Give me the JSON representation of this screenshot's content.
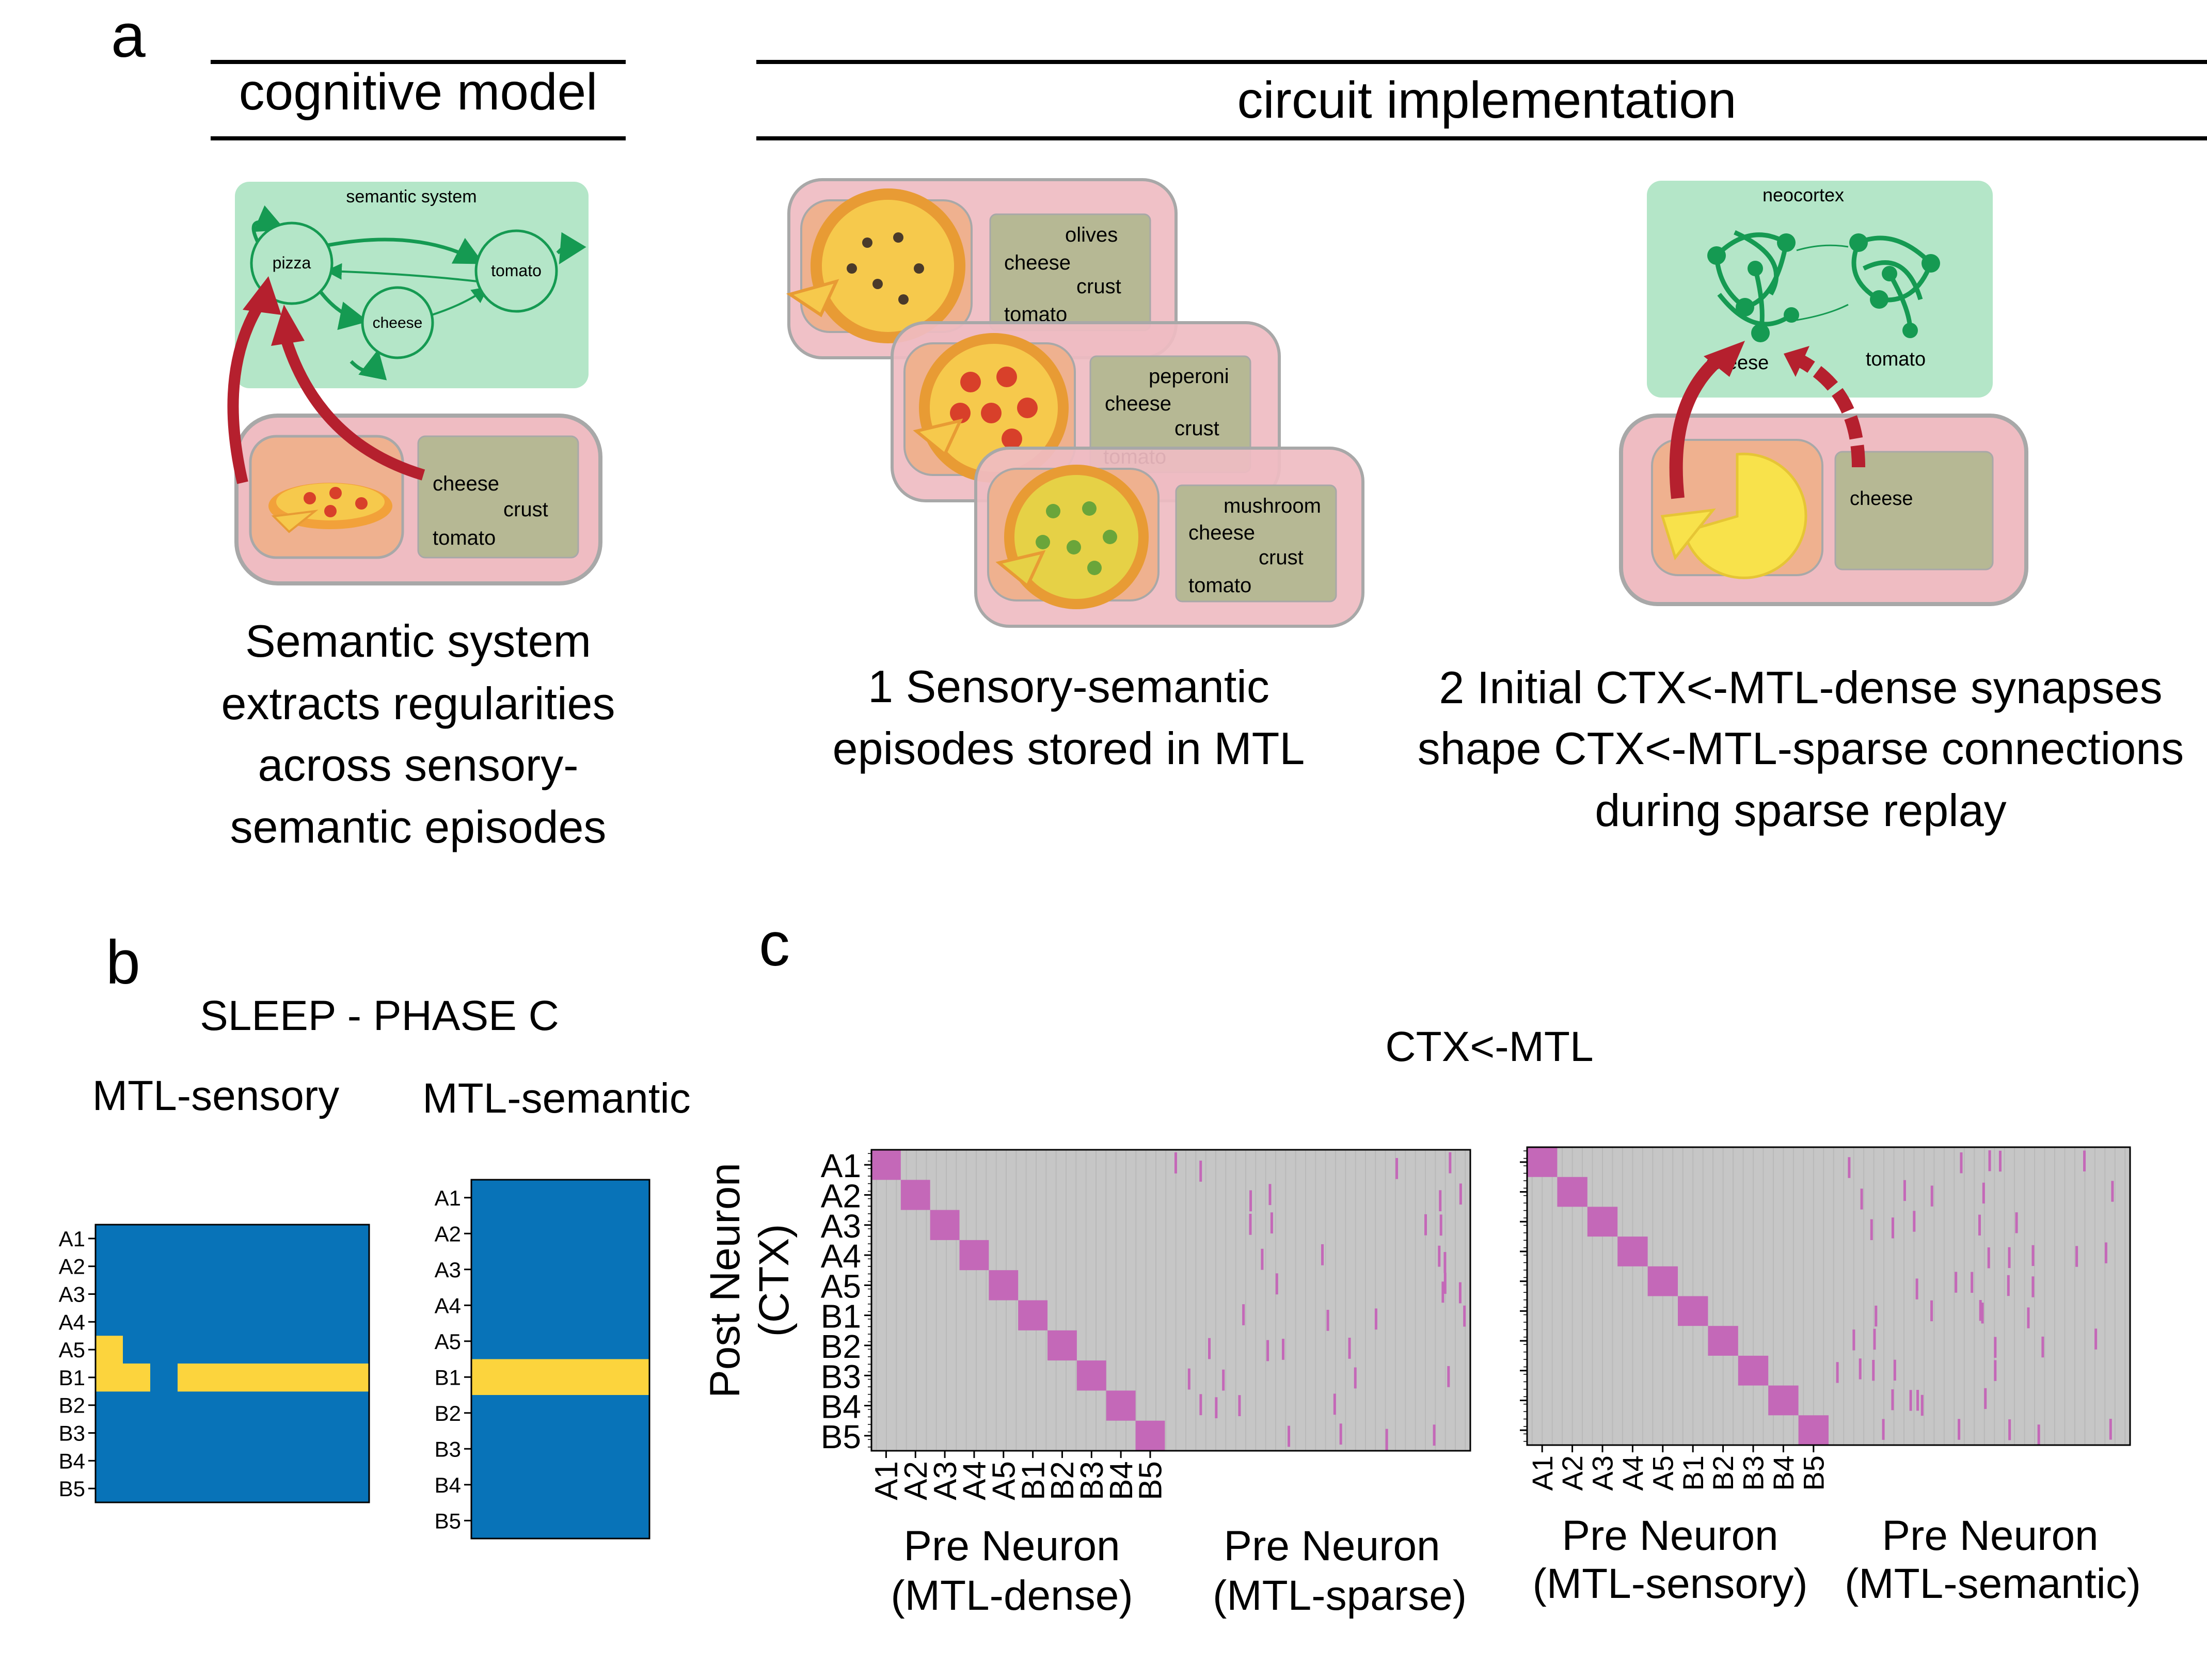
{
  "panels": {
    "a": {
      "letter": "a",
      "cognitive_title": "cognitive model",
      "circuit_title": "circuit implementation",
      "semantic_system": {
        "label": "semantic system",
        "nodes": [
          "pizza",
          "cheese",
          "tomato"
        ],
        "episode_words": [
          "cheese",
          "crust",
          "tomato"
        ],
        "caption": [
          "Semantic system",
          "extracts regularities",
          "across sensory-",
          "semantic episodes"
        ]
      },
      "episodes": [
        {
          "words": [
            "olives",
            "cheese",
            "crust",
            "tomato"
          ]
        },
        {
          "words": [
            "peperoni",
            "cheese",
            "crust",
            "tomato"
          ]
        },
        {
          "words": [
            "mushroom",
            "cheese",
            "crust",
            "tomato"
          ]
        }
      ],
      "episodes_caption": [
        "1 Sensory-semantic",
        "episodes stored in MTL"
      ],
      "neocortex": {
        "label": "neocortex",
        "cluster_labels": [
          "cheese",
          "tomato"
        ],
        "episode_word": "cheese"
      },
      "replay_caption": [
        "2 Initial CTX<-MTL-dense synapses",
        "shape CTX<-MTL-sparse connections",
        "during sparse replay"
      ]
    },
    "b": {
      "letter": "b",
      "title": "SLEEP - PHASE C",
      "left_title": "MTL-sensory",
      "right_title": "MTL-semantic",
      "row_labels": [
        "A1",
        "A2",
        "A3",
        "A4",
        "A5",
        "B1",
        "B2",
        "B3",
        "B4",
        "B5"
      ]
    },
    "c": {
      "letter": "c",
      "title": "CTX<-MTL",
      "ylabel": [
        "Post Neuron",
        "(CTX)"
      ],
      "row_labels": [
        "A1",
        "A2",
        "A3",
        "A4",
        "A5",
        "B1",
        "B2",
        "B3",
        "B4",
        "B5"
      ],
      "left_xlabels": [
        [
          "Pre Neuron",
          "(MTL-dense)"
        ],
        [
          "Pre Neuron",
          "(MTL-sparse)"
        ]
      ],
      "right_xlabels": [
        [
          "Pre Neuron",
          "(MTL-sensory)"
        ],
        [
          "Pre Neuron",
          "(MTL-semantic)"
        ]
      ]
    }
  },
  "colors": {
    "semantic_green": "#b4e6c8",
    "node_green": "#159a52",
    "episode_pink": "#efbcc2",
    "image_box": "#efb18f",
    "word_box": "#b6b894",
    "arrow_red": "#b5202e",
    "heat_blue": "#0873b8",
    "heat_yellow": "#fcd43d",
    "matrix_bg": "#c6c6c6",
    "matrix_mark": "#c468b8"
  },
  "chart_data": [
    {
      "type": "heatmap",
      "title": "MTL-sensory",
      "rows": [
        "A1",
        "A2",
        "A3",
        "A4",
        "A5",
        "B1",
        "B2",
        "B3",
        "B4",
        "B5"
      ],
      "n_columns": 20,
      "active_segments": [
        {
          "row": "A5",
          "columns": [
            0,
            1
          ]
        },
        {
          "row": "B1",
          "columns": [
            0,
            3
          ]
        },
        {
          "row": "B1",
          "columns": [
            6,
            19
          ]
        }
      ],
      "value_colors": {
        "inactive": "#0873b8",
        "active": "#fcd43d"
      }
    },
    {
      "type": "heatmap",
      "title": "MTL-semantic",
      "rows": [
        "A1",
        "A2",
        "A3",
        "A4",
        "A5",
        "B1",
        "B2",
        "B3",
        "B4",
        "B5"
      ],
      "n_columns": 1,
      "active_rows": [
        "B1"
      ],
      "value_colors": {
        "inactive": "#0873b8",
        "active": "#fcd43d"
      }
    },
    {
      "type": "heatmap",
      "title": "CTX<-MTL",
      "subplot": "left",
      "ylabel": "Post Neuron (CTX)",
      "rows": [
        "A1",
        "A2",
        "A3",
        "A4",
        "A5",
        "B1",
        "B2",
        "B3",
        "B4",
        "B5"
      ],
      "dense_columns": [
        "A1",
        "A2",
        "A3",
        "A4",
        "A5",
        "B1",
        "B2",
        "B3",
        "B4",
        "B5"
      ],
      "diagonal": true,
      "xlabels": [
        "Pre Neuron (MTL-dense)",
        "Pre Neuron (MTL-sparse)"
      ]
    },
    {
      "type": "heatmap",
      "subplot": "right",
      "rows": [
        "A1",
        "A2",
        "A3",
        "A4",
        "A5",
        "B1",
        "B2",
        "B3",
        "B4",
        "B5"
      ],
      "dense_columns": [
        "A1",
        "A2",
        "A3",
        "A4",
        "A5",
        "B1",
        "B2",
        "B3",
        "B4",
        "B5"
      ],
      "diagonal": true,
      "xlabels": [
        "Pre Neuron (MTL-sensory)",
        "Pre Neuron (MTL-semantic)"
      ]
    }
  ]
}
